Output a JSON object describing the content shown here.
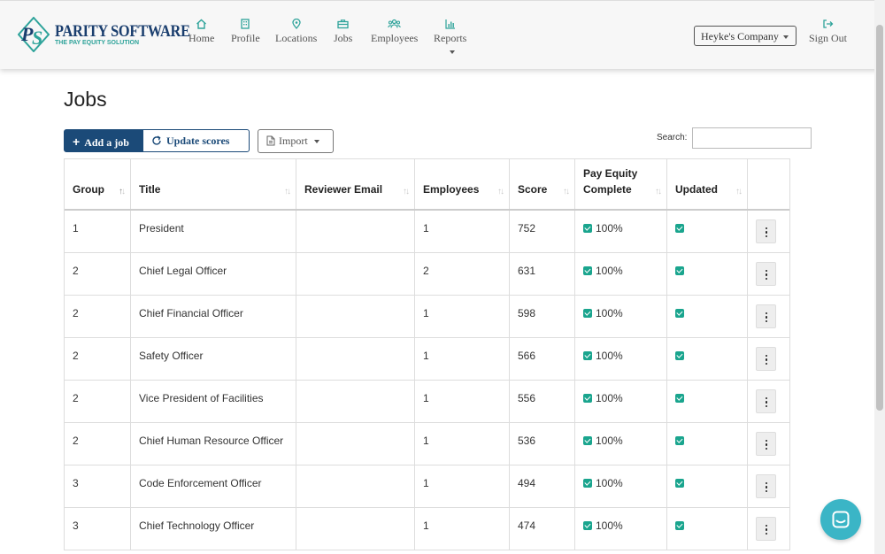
{
  "brand": {
    "title": "PARITY SOFTWARE",
    "tagline": "THE PAY EQUITY SOLUTION",
    "mark": "PS",
    "colors": {
      "primary": "#1b4a78",
      "accent": "#2ea39a",
      "check": "#1aa58e",
      "chat": "#3bb5c6"
    }
  },
  "nav": {
    "items": [
      {
        "label": "Home",
        "icon": "home-icon"
      },
      {
        "label": "Profile",
        "icon": "building-icon"
      },
      {
        "label": "Locations",
        "icon": "map-pin-icon"
      },
      {
        "label": "Jobs",
        "icon": "briefcase-icon"
      },
      {
        "label": "Employees",
        "icon": "users-icon"
      },
      {
        "label": "Reports",
        "icon": "bar-chart-icon"
      }
    ],
    "company": "Heyke's Company",
    "signout": "Sign Out"
  },
  "page": {
    "title": "Jobs"
  },
  "toolbar": {
    "add_label": "Add a job",
    "update_label": "Update scores",
    "import_label": "Import",
    "search_label": "Search:",
    "search_value": ""
  },
  "table": {
    "columns": [
      "Group",
      "Title",
      "Reviewer Email",
      "Employees",
      "Score",
      "Pay Equity Complete",
      "Updated",
      ""
    ],
    "rows": [
      {
        "group": "1",
        "title": "President",
        "reviewer": "",
        "employees": "1",
        "score": "752",
        "pay_equity": "100%",
        "updated": true
      },
      {
        "group": "2",
        "title": "Chief Legal Officer",
        "reviewer": "",
        "employees": "2",
        "score": "631",
        "pay_equity": "100%",
        "updated": true
      },
      {
        "group": "2",
        "title": "Chief Financial Officer",
        "reviewer": "",
        "employees": "1",
        "score": "598",
        "pay_equity": "100%",
        "updated": true
      },
      {
        "group": "2",
        "title": "Safety Officer",
        "reviewer": "",
        "employees": "1",
        "score": "566",
        "pay_equity": "100%",
        "updated": true
      },
      {
        "group": "2",
        "title": "Vice President of Facilities",
        "reviewer": "",
        "employees": "1",
        "score": "556",
        "pay_equity": "100%",
        "updated": true
      },
      {
        "group": "2",
        "title": "Chief Human Resource Officer",
        "reviewer": "",
        "employees": "1",
        "score": "536",
        "pay_equity": "100%",
        "updated": true
      },
      {
        "group": "3",
        "title": "Code Enforcement Officer",
        "reviewer": "",
        "employees": "1",
        "score": "494",
        "pay_equity": "100%",
        "updated": true
      },
      {
        "group": "3",
        "title": "Chief Technology Officer",
        "reviewer": "",
        "employees": "1",
        "score": "474",
        "pay_equity": "100%",
        "updated": true
      }
    ]
  }
}
